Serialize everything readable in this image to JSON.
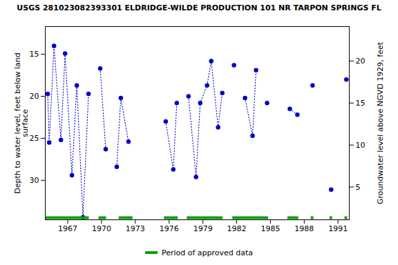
{
  "chart_data": {
    "type": "line",
    "title": "USGS 281023082393301 ELDRIDGE-WILDE PRODUCTION 101 NR TARPON SPRINGS FL",
    "y_label": "Depth to water level, feet below land\nsurface",
    "y2_label": "Groundwater level above NGVD 1929, feet",
    "x": [
      1965.22,
      1965.35,
      1965.78,
      1966.39,
      1966.76,
      1967.37,
      1967.8,
      1968.35,
      1968.84,
      1969.88,
      1970.37,
      1971.35,
      1971.71,
      1972.39,
      1975.7,
      1976.37,
      1976.68,
      1977.72,
      1978.39,
      1978.76,
      1979.37,
      1979.74,
      1980.35,
      1980.72,
      1981.76,
      1982.74,
      1983.41,
      1983.72,
      1984.7,
      1986.72,
      1987.39,
      1988.74,
      1990.39,
      1991.74
    ],
    "values": [
      19.7,
      25.5,
      14.0,
      25.2,
      14.9,
      29.4,
      18.7,
      34.4,
      19.7,
      16.7,
      26.3,
      28.4,
      20.2,
      25.4,
      23.0,
      28.7,
      20.8,
      20.0,
      29.6,
      20.8,
      18.7,
      15.8,
      23.7,
      19.6,
      16.3,
      20.2,
      24.7,
      16.9,
      20.8,
      21.5,
      22.2,
      18.7,
      31.1,
      18.0
    ],
    "color": "#0000cc",
    "marker": "circle",
    "line_style": "dotted",
    "xlim": [
      1965.0,
      1992.0
    ],
    "xticks": [
      1967,
      1970,
      1973,
      1976,
      1979,
      1982,
      1985,
      1988,
      1991
    ],
    "ylim": [
      34.7,
      11.7
    ],
    "yticks": [
      15,
      20,
      25,
      30
    ],
    "y2lim": [
      1.1,
      24.1
    ],
    "y2ticks": [
      5,
      10,
      15,
      20
    ],
    "approved_periods": {
      "name": "Period of approved data",
      "color": "#00a000",
      "ranges": [
        [
          1965.04,
          1968.9
        ],
        [
          1969.76,
          1970.43
        ],
        [
          1971.55,
          1972.78
        ],
        [
          1975.57,
          1976.8
        ],
        [
          1977.6,
          1980.78
        ],
        [
          1981.64,
          1984.82
        ],
        [
          1986.53,
          1987.5
        ],
        [
          1988.6,
          1988.85
        ],
        [
          1990.27,
          1990.51
        ],
        [
          1991.6,
          1991.85
        ]
      ]
    }
  }
}
